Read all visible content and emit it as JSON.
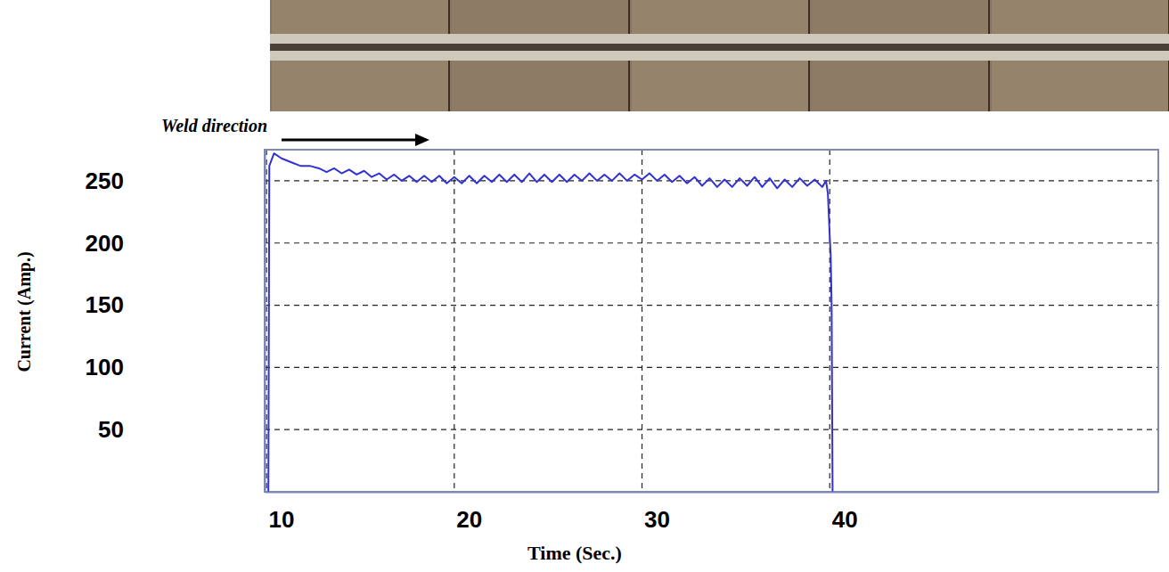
{
  "chart_data": {
    "type": "line",
    "x_label": "Time (Sec.)",
    "y_label": "Current (Amp.)",
    "annotation": "Weld direction",
    "x": [
      10.1,
      10.15,
      10.4,
      10.8,
      11.3,
      11.8,
      12.3,
      12.8,
      13.2,
      13.6,
      14.0,
      14.4,
      14.8,
      15.2,
      15.6,
      16.0,
      16.4,
      16.8,
      17.2,
      17.6,
      18.0,
      18.4,
      18.8,
      19.2,
      19.6,
      20.0,
      20.4,
      20.8,
      21.2,
      21.6,
      22.0,
      22.4,
      22.8,
      23.2,
      23.6,
      24.0,
      24.4,
      24.8,
      25.2,
      25.6,
      26.0,
      26.4,
      26.8,
      27.2,
      27.6,
      28.0,
      28.4,
      28.8,
      29.2,
      29.6,
      30.0,
      30.4,
      30.8,
      31.2,
      31.6,
      32.0,
      32.4,
      32.8,
      33.2,
      33.6,
      34.0,
      34.4,
      34.8,
      35.2,
      35.6,
      36.0,
      36.4,
      36.8,
      37.2,
      37.6,
      38.0,
      38.4,
      38.8,
      39.2,
      39.6,
      39.8,
      39.9,
      40.0,
      40.05,
      40.1,
      40.15
    ],
    "series": [
      {
        "color": "#3232d2",
        "values": [
          0,
          262,
          272,
          268,
          265,
          262,
          262,
          260,
          257,
          260,
          256,
          259,
          255,
          258,
          253,
          256,
          251,
          255,
          250,
          254,
          249,
          254,
          249,
          254,
          248,
          253,
          248,
          254,
          248,
          254,
          249,
          255,
          249,
          255,
          249,
          256,
          249,
          255,
          249,
          255,
          249,
          255,
          250,
          256,
          250,
          255,
          250,
          256,
          250,
          255,
          251,
          256,
          250,
          255,
          249,
          254,
          248,
          253,
          246,
          252,
          245,
          251,
          245,
          252,
          246,
          253,
          245,
          252,
          244,
          251,
          245,
          252,
          246,
          251,
          245,
          250,
          240,
          205,
          190,
          150,
          0
        ]
      }
    ],
    "xlim": [
      9.9,
      57.5
    ],
    "ylim": [
      0,
      275
    ],
    "xticks": [
      10,
      20,
      30,
      40
    ],
    "yticks": [
      50,
      100,
      150,
      200,
      250
    ],
    "grid": true
  }
}
